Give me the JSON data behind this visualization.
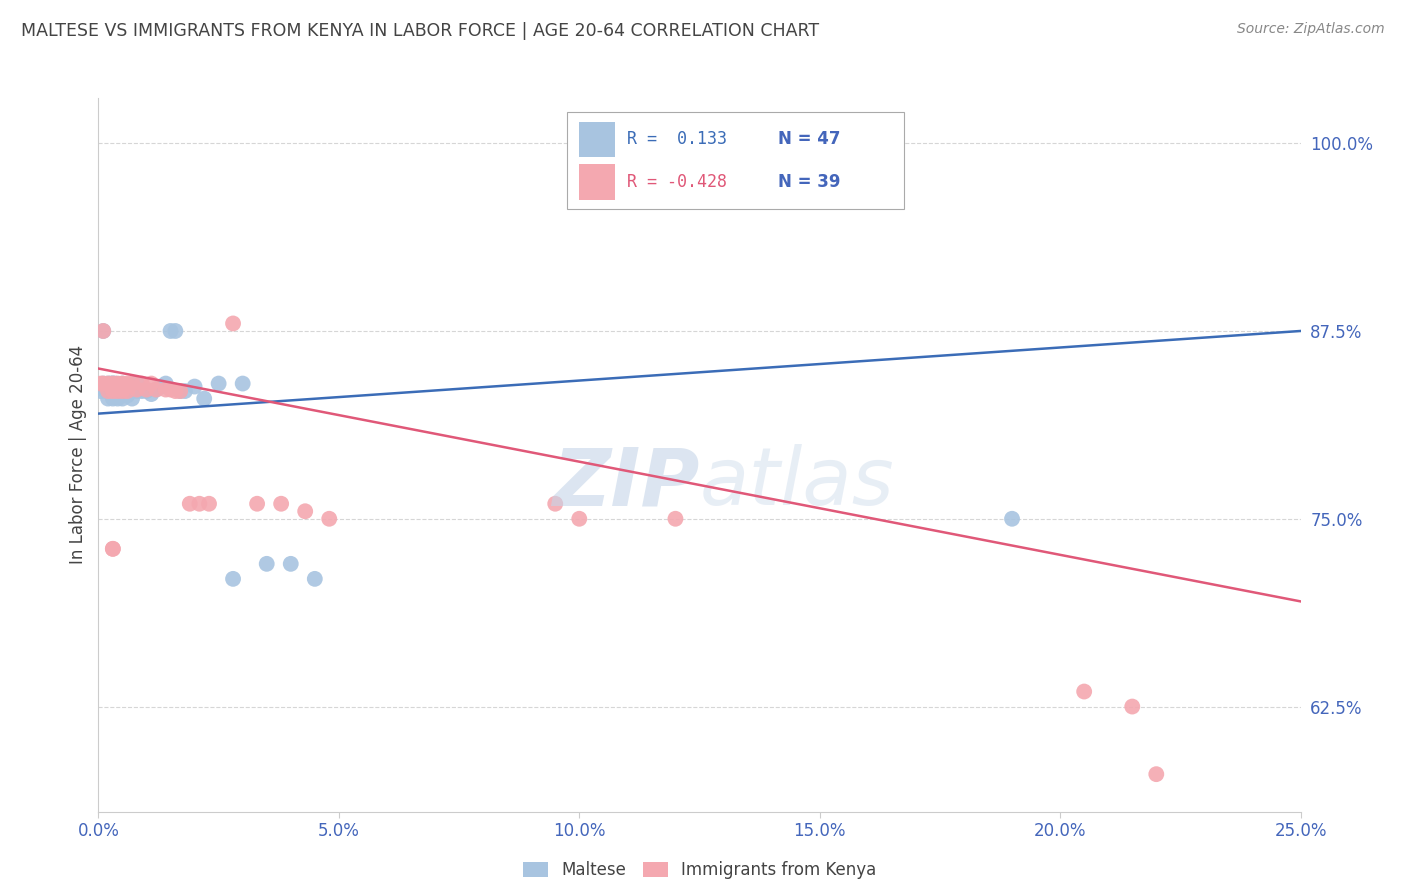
{
  "title": "MALTESE VS IMMIGRANTS FROM KENYA IN LABOR FORCE | AGE 20-64 CORRELATION CHART",
  "source": "Source: ZipAtlas.com",
  "ylabel": "In Labor Force | Age 20-64",
  "blue_color": "#A8C4E0",
  "pink_color": "#F4A8B0",
  "blue_line_color": "#3B6CB7",
  "pink_line_color": "#E05878",
  "axis_label_color": "#4466BB",
  "title_color": "#444444",
  "source_color": "#888888",
  "grid_color": "#CCCCCC",
  "watermark_color": "#C5D5E8",
  "xlim": [
    0.0,
    0.25
  ],
  "ylim": [
    0.555,
    1.03
  ],
  "xticks": [
    0.0,
    0.05,
    0.1,
    0.15,
    0.2,
    0.25
  ],
  "yticks": [
    0.625,
    0.75,
    0.875,
    1.0
  ],
  "blue_x": [
    0.0005,
    0.001,
    0.001,
    0.0015,
    0.002,
    0.002,
    0.0025,
    0.0025,
    0.003,
    0.003,
    0.003,
    0.0035,
    0.0035,
    0.004,
    0.004,
    0.0045,
    0.005,
    0.005,
    0.005,
    0.006,
    0.006,
    0.007,
    0.007,
    0.008,
    0.008,
    0.009,
    0.01,
    0.011,
    0.012,
    0.013,
    0.014,
    0.015,
    0.016,
    0.017,
    0.018,
    0.02,
    0.022,
    0.025,
    0.028,
    0.03,
    0.035,
    0.04,
    0.045,
    0.002,
    0.004,
    0.19,
    0.003
  ],
  "blue_y": [
    0.835,
    0.875,
    0.84,
    0.835,
    0.84,
    0.835,
    0.84,
    0.835,
    0.84,
    0.835,
    0.83,
    0.84,
    0.835,
    0.838,
    0.832,
    0.835,
    0.84,
    0.835,
    0.83,
    0.838,
    0.832,
    0.835,
    0.83,
    0.84,
    0.835,
    0.835,
    0.835,
    0.833,
    0.836,
    0.838,
    0.84,
    0.875,
    0.875,
    0.835,
    0.835,
    0.838,
    0.83,
    0.84,
    0.71,
    0.84,
    0.72,
    0.72,
    0.71,
    0.83,
    0.83,
    0.75,
    0.84
  ],
  "pink_x": [
    0.0005,
    0.001,
    0.001,
    0.002,
    0.002,
    0.003,
    0.003,
    0.004,
    0.004,
    0.005,
    0.005,
    0.006,
    0.006,
    0.007,
    0.008,
    0.009,
    0.01,
    0.011,
    0.012,
    0.014,
    0.015,
    0.016,
    0.017,
    0.019,
    0.021,
    0.023,
    0.028,
    0.033,
    0.038,
    0.043,
    0.048,
    0.095,
    0.1,
    0.205,
    0.215,
    0.22,
    0.003,
    0.003,
    0.12
  ],
  "pink_y": [
    0.84,
    0.875,
    0.84,
    0.84,
    0.835,
    0.84,
    0.835,
    0.84,
    0.835,
    0.84,
    0.835,
    0.84,
    0.835,
    0.84,
    0.836,
    0.84,
    0.836,
    0.84,
    0.836,
    0.836,
    0.836,
    0.835,
    0.835,
    0.76,
    0.76,
    0.76,
    0.88,
    0.76,
    0.76,
    0.755,
    0.75,
    0.76,
    0.75,
    0.635,
    0.625,
    0.58,
    0.73,
    0.73,
    0.75
  ],
  "blue_line_x0": 0.0,
  "blue_line_y0": 0.82,
  "blue_line_x1": 0.25,
  "blue_line_y1": 0.875,
  "pink_line_x0": 0.0,
  "pink_line_y0": 0.85,
  "pink_line_x1": 0.25,
  "pink_line_y1": 0.695,
  "figsize": [
    14.06,
    8.92
  ],
  "dpi": 100
}
